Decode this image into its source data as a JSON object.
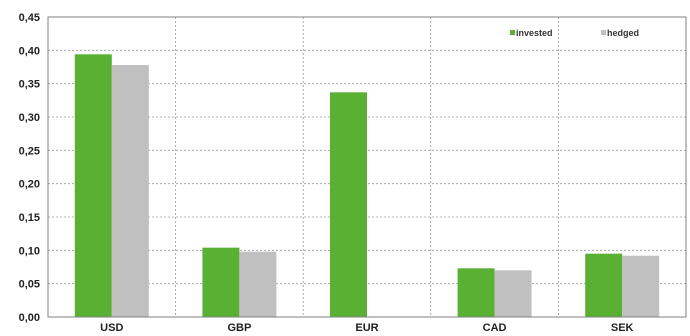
{
  "chart_data": {
    "type": "bar",
    "title": "",
    "xlabel": "",
    "ylabel": "",
    "categories": [
      "USD",
      "GBP",
      "EUR",
      "CAD",
      "SEK"
    ],
    "series": [
      {
        "name": "invested",
        "color": "#5ab033",
        "values": [
          0.394,
          0.104,
          0.337,
          0.073,
          0.095
        ]
      },
      {
        "name": "hedged",
        "color": "#c0c0c0",
        "values": [
          0.378,
          0.098,
          null,
          0.07,
          0.092
        ]
      }
    ],
    "ylim": [
      0,
      0.45
    ],
    "yticks": [
      "0,00",
      "0,05",
      "0,10",
      "0,15",
      "0,20",
      "0,25",
      "0,30",
      "0,35",
      "0,40",
      "0,45"
    ],
    "grid": true,
    "legend_position": "top-right"
  }
}
